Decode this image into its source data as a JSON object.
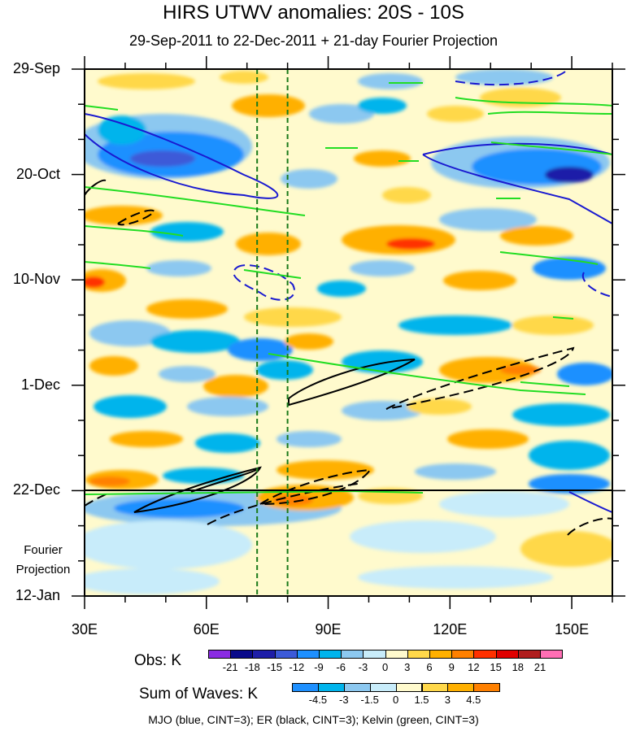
{
  "chart_data": {
    "type": "heatmap",
    "title": "HIRS UTWV anomalies: 20S - 10S",
    "subtitle": "29-Sep-2011 to 22-Dec-2011 + 21-day Fourier Projection",
    "x_axis": {
      "range_deg_east": [
        30,
        160
      ],
      "ticks": [
        30,
        60,
        90,
        120,
        150
      ],
      "tick_labels": [
        "30E",
        "60E",
        "90E",
        "120E",
        "150E"
      ]
    },
    "y_axis": {
      "range_days_from_start": [
        0,
        105
      ],
      "ticks_days": [
        0,
        21,
        42,
        63,
        84,
        105
      ],
      "tick_labels": [
        "29-Sep",
        "20-Oct",
        "10-Nov",
        "1-Dec",
        "22-Dec",
        "12-Jan"
      ],
      "projection_start_day": 84
    },
    "fourier_label": [
      "Fourier",
      "Projection"
    ],
    "reference_longitudes": [
      72.5,
      80
    ],
    "obs_legend": {
      "title": "Obs: K",
      "levels": [
        "-21",
        "-18",
        "-15",
        "-12",
        "-9",
        "-6",
        "-3",
        "0",
        "3",
        "6",
        "9",
        "12",
        "15",
        "18",
        "21"
      ],
      "colors": [
        "#8a2be2",
        "#0a0a8a",
        "#1e1ea8",
        "#3c5ad8",
        "#1e90ff",
        "#00b4ec",
        "#8cc8f0",
        "#c8ecfa",
        "#fffacd",
        "#ffd84a",
        "#ffb000",
        "#ff8000",
        "#ff3000",
        "#e00000",
        "#b01e1e",
        "#ff6eb4"
      ]
    },
    "waves_legend": {
      "title": "Sum of Waves: K",
      "levels": [
        "-4.5",
        "-3",
        "-1.5",
        "0",
        "1.5",
        "3",
        "4.5"
      ],
      "colors": [
        "#1e90ff",
        "#00b4ec",
        "#8cc8f0",
        "#c8ecfa",
        "#fffacd",
        "#ffd84a",
        "#ffb000",
        "#ff8000"
      ]
    },
    "overlays": [
      {
        "name": "MJO",
        "color": "#1a1ad0",
        "cint": 3
      },
      {
        "name": "ER",
        "color": "#000000",
        "cint": 3
      },
      {
        "name": "Kelvin",
        "color": "#22dd22",
        "cint": 3
      }
    ],
    "caption": "MJO (blue, CINT=3); ER (black, CINT=3); Kelvin (green, CINT=3)"
  }
}
